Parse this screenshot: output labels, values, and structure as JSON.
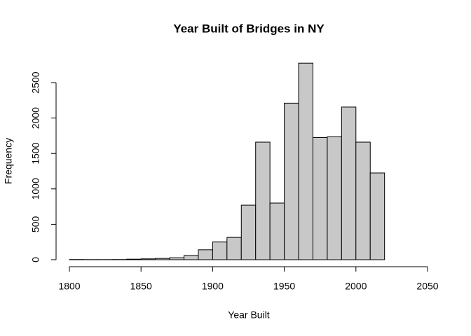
{
  "chart_data": {
    "type": "histogram",
    "title": "Year Built of Bridges in NY",
    "xlabel": "Year Built",
    "ylabel": "Frequency",
    "bins": [
      1800,
      1810,
      1820,
      1830,
      1840,
      1850,
      1860,
      1870,
      1880,
      1890,
      1900,
      1910,
      1920,
      1930,
      1940,
      1950,
      1960,
      1970,
      1980,
      1990,
      2000,
      2010,
      2020
    ],
    "values": [
      3,
      2,
      2,
      3,
      8,
      12,
      18,
      28,
      60,
      140,
      250,
      315,
      770,
      1660,
      800,
      2210,
      2775,
      1725,
      1735,
      2155,
      1660,
      1225
    ],
    "color": "#c8c8c8",
    "xlim": [
      1800,
      2050
    ],
    "xticks": [
      1800,
      1850,
      1900,
      1950,
      2000,
      2050
    ],
    "ylim": [
      0,
      2775
    ],
    "yticks": [
      0,
      500,
      1000,
      1500,
      2000,
      2500
    ]
  }
}
